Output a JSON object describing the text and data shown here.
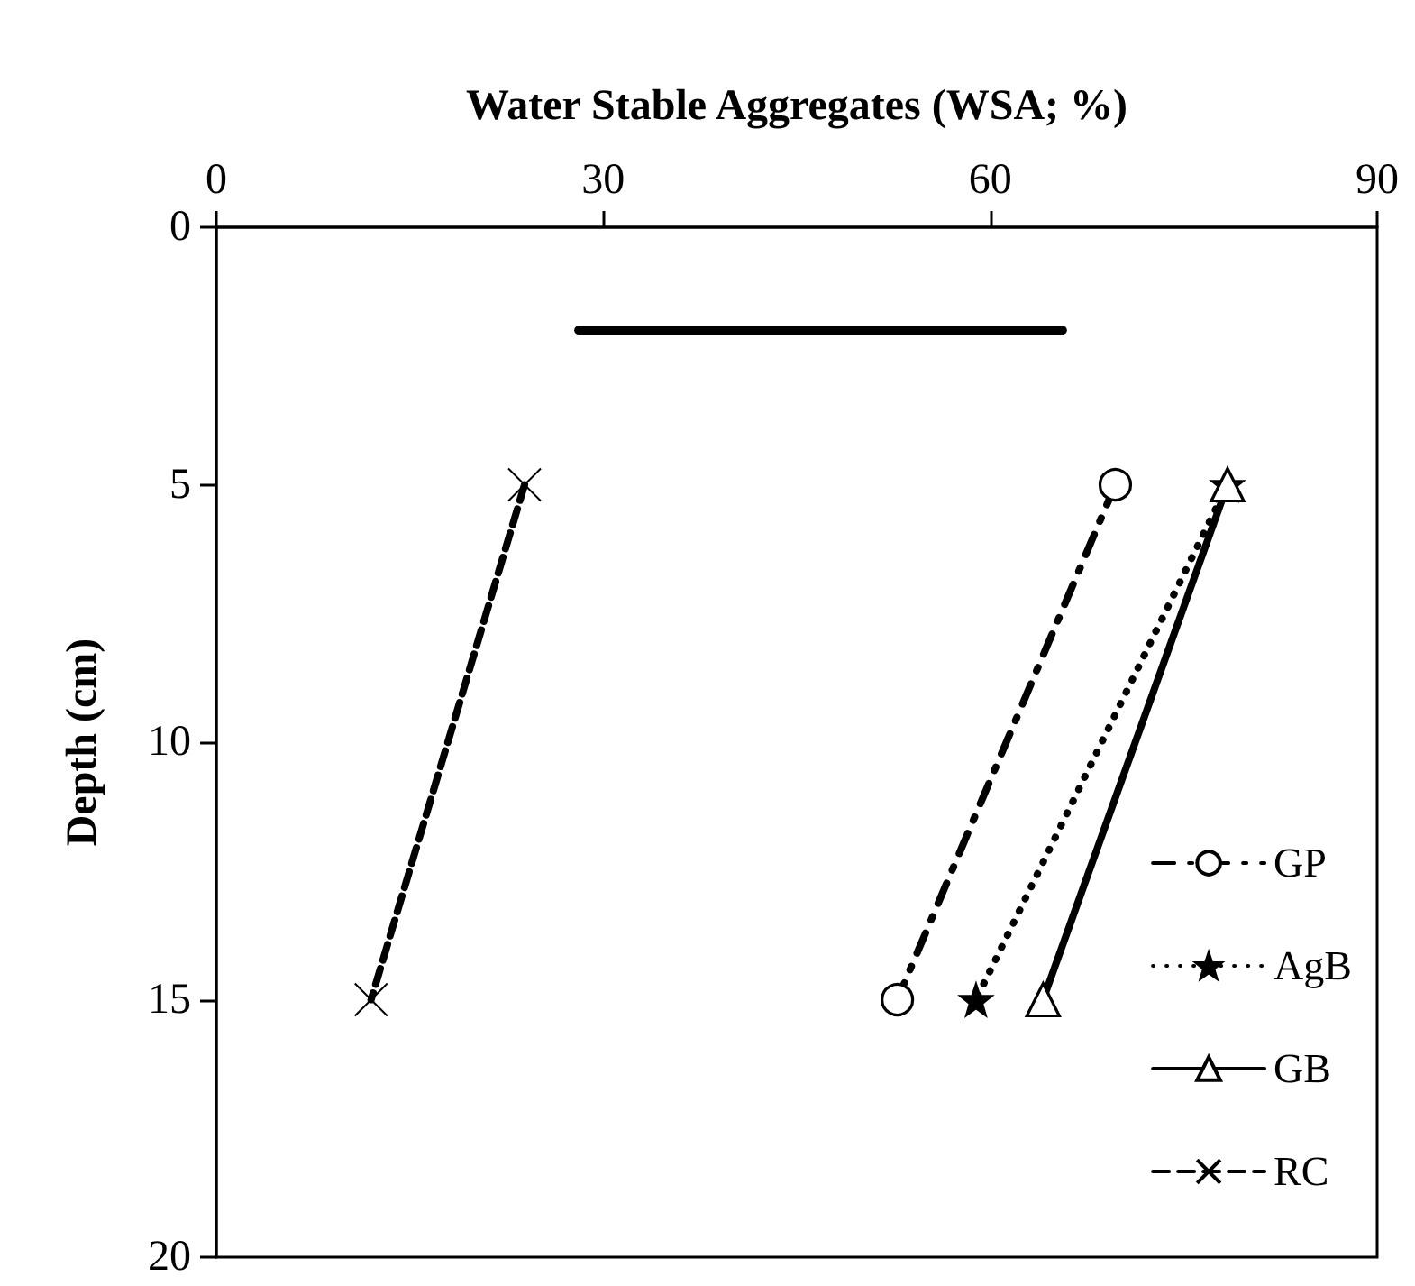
{
  "chart_data": {
    "type": "line",
    "xlabel": "Water Stable Aggregates (WSA; %)",
    "ylabel": "Depth (cm)",
    "xlim": [
      0,
      90
    ],
    "xticks": [
      0,
      30,
      60,
      90
    ],
    "ylim": [
      20,
      0
    ],
    "yticks": [
      0,
      5,
      10,
      15,
      20
    ],
    "grid": false,
    "legend": "right",
    "series": [
      {
        "name": "GP",
        "color": "#000000",
        "x": [
          69.7,
          52.8
        ],
        "values": [
          5,
          15
        ],
        "marker": "circle",
        "line_style": "dashdot"
      },
      {
        "name": "AgB",
        "color": "#000000",
        "x": [
          78.4,
          58.9
        ],
        "values": [
          5,
          15
        ],
        "marker": "star",
        "line_style": "dotted"
      },
      {
        "name": "GB",
        "color": "#000000",
        "x": [
          78.4,
          64.1
        ],
        "values": [
          5,
          15
        ],
        "marker": "triangle",
        "line_style": "solid"
      },
      {
        "name": "RC",
        "color": "#000000",
        "x": [
          23.9,
          12.0
        ],
        "values": [
          5,
          15
        ],
        "marker": "cross",
        "line_style": "dashed"
      },
      {
        "color": "#000000",
        "x": [
          28.1,
          65.6
        ],
        "values": [
          2,
          2
        ],
        "marker": "none",
        "line_style": "solid"
      }
    ]
  }
}
